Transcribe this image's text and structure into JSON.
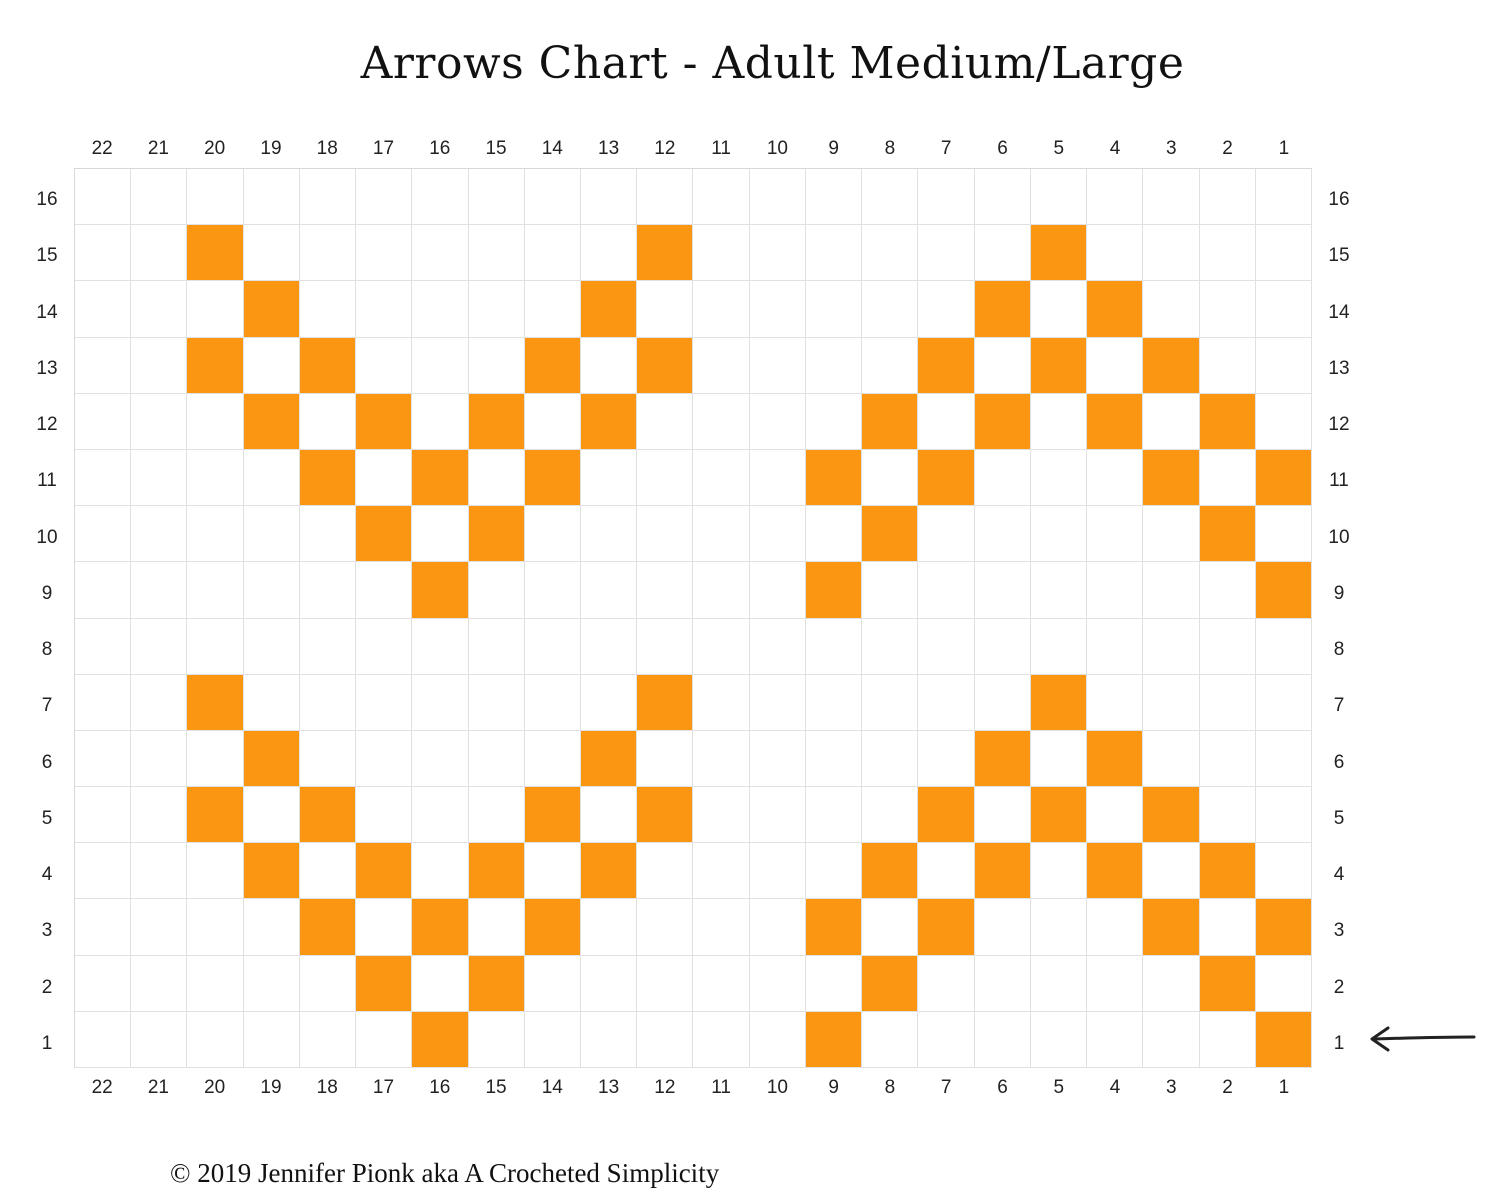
{
  "title": "Arrows Chart - Adult Medium/Large",
  "copyright": "© 2019 Jennifer Pionk aka A Crocheted Simplicity",
  "colors": {
    "filled": "#fb9612",
    "empty": "#ffffff",
    "grid": "#e1e1e1"
  },
  "chart": {
    "columns": [
      "22",
      "21",
      "20",
      "19",
      "18",
      "17",
      "16",
      "15",
      "14",
      "13",
      "12",
      "11",
      "10",
      "9",
      "8",
      "7",
      "6",
      "5",
      "4",
      "3",
      "2",
      "1"
    ],
    "rows": [
      "16",
      "15",
      "14",
      "13",
      "12",
      "11",
      "10",
      "9",
      "8",
      "7",
      "6",
      "5",
      "4",
      "3",
      "2",
      "1"
    ],
    "cells": [
      "......................",
      "..X.......X......X....",
      "...X.....X......X.X...",
      "..X.X...X.X....X.X.X..",
      "...X.X.X.X....X.X.X.X.",
      "....X.X.X....X.X...X.X",
      ".....X.X......X.....X.",
      "......X......X.......X",
      "......................",
      "..X.......X......X....",
      "...X.....X......X.X...",
      "..X.X...X.X....X.X.X..",
      "...X.X.X.X....X.X.X.X.",
      "....X.X.X....X.X...X.X",
      ".....X.X......X.....X.",
      "......X......X.......X"
    ],
    "start_indicator": {
      "row": "1",
      "side": "right",
      "icon": "left-arrow-icon"
    }
  }
}
